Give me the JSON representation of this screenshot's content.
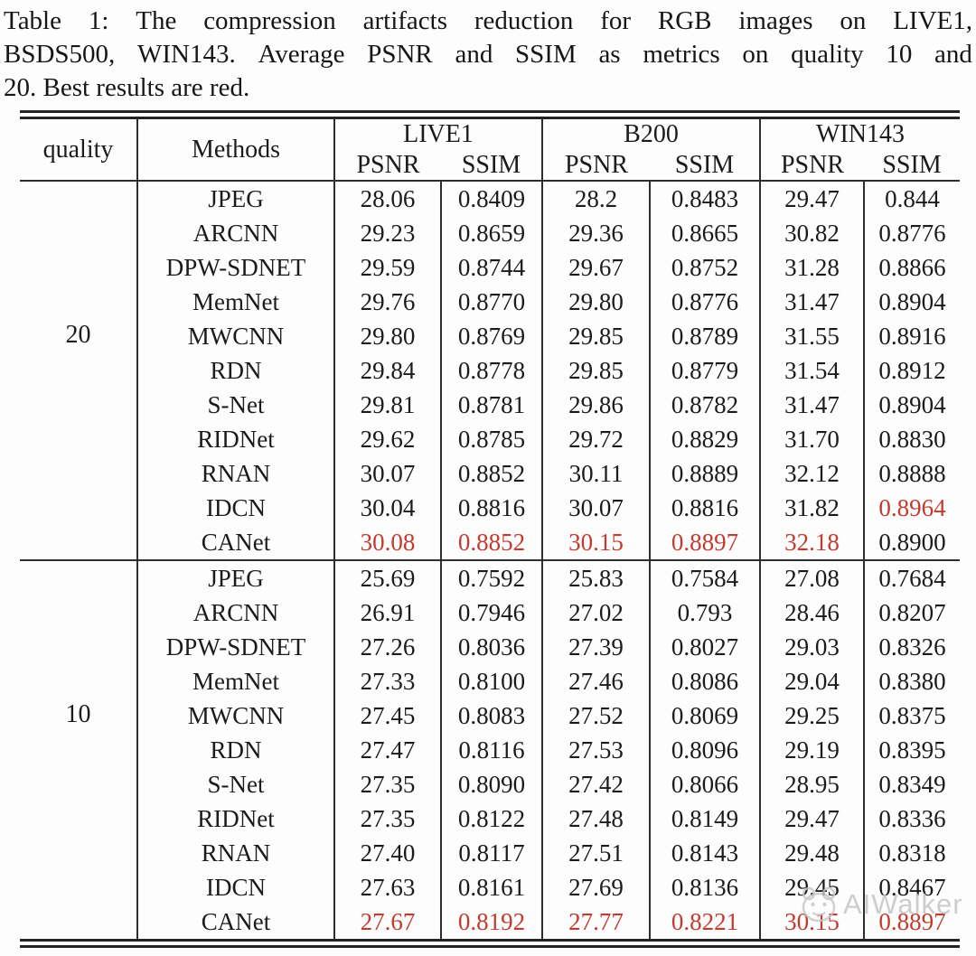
{
  "caption": {
    "line1": "Table 1: The compression artifacts reduction for RGB images on LIVE1,",
    "line2": "BSDS500, WIN143. Average PSNR and SSIM as metrics on quality 10 and",
    "line3": "20. Best results are red."
  },
  "colors": {
    "highlight_red": "#c23b2f",
    "text": "#1b1b1b",
    "rule": "#2e2e2e",
    "watermark_gray": "#c3c3c3"
  },
  "watermark": {
    "text": "AIWalker",
    "logo": "aiwalker-face-logo-icon"
  },
  "table": {
    "quality_header": "quality",
    "methods_header": "Methods",
    "groups": [
      {
        "label": "LIVE1"
      },
      {
        "label": "B200"
      },
      {
        "label": "WIN143"
      }
    ],
    "metric_headers": [
      "PSNR",
      "SSIM",
      "PSNR",
      "SSIM",
      "PSNR",
      "SSIM"
    ],
    "blocks": [
      {
        "quality": "20",
        "rows": [
          {
            "method": "JPEG",
            "values": [
              "28.06",
              "0.8409",
              "28.2",
              "0.8483",
              "29.47",
              "0.844"
            ],
            "red": []
          },
          {
            "method": "ARCNN",
            "values": [
              "29.23",
              "0.8659",
              "29.36",
              "0.8665",
              "30.82",
              "0.8776"
            ],
            "red": []
          },
          {
            "method": "DPW-SDNET",
            "values": [
              "29.59",
              "0.8744",
              "29.67",
              "0.8752",
              "31.28",
              "0.8866"
            ],
            "red": []
          },
          {
            "method": "MemNet",
            "values": [
              "29.76",
              "0.8770",
              "29.80",
              "0.8776",
              "31.47",
              "0.8904"
            ],
            "red": []
          },
          {
            "method": "MWCNN",
            "values": [
              "29.80",
              "0.8769",
              "29.85",
              "0.8789",
              "31.55",
              "0.8916"
            ],
            "red": []
          },
          {
            "method": "RDN",
            "values": [
              "29.84",
              "0.8778",
              "29.85",
              "0.8779",
              "31.54",
              "0.8912"
            ],
            "red": []
          },
          {
            "method": "S-Net",
            "values": [
              "29.81",
              "0.8781",
              "29.86",
              "0.8782",
              "31.47",
              "0.8904"
            ],
            "red": []
          },
          {
            "method": "RIDNet",
            "values": [
              "29.62",
              "0.8785",
              "29.72",
              "0.8829",
              "31.70",
              "0.8830"
            ],
            "red": []
          },
          {
            "method": "RNAN",
            "values": [
              "30.07",
              "0.8852",
              "30.11",
              "0.8889",
              "32.12",
              "0.8888"
            ],
            "red": []
          },
          {
            "method": "IDCN",
            "values": [
              "30.04",
              "0.8816",
              "30.07",
              "0.8816",
              "31.82",
              "0.8964"
            ],
            "red": [
              5
            ]
          },
          {
            "method": "CANet",
            "values": [
              "30.08",
              "0.8852",
              "30.15",
              "0.8897",
              "32.18",
              "0.8900"
            ],
            "red": [
              0,
              1,
              2,
              3,
              4
            ]
          }
        ]
      },
      {
        "quality": "10",
        "rows": [
          {
            "method": "JPEG",
            "values": [
              "25.69",
              "0.7592",
              "25.83",
              "0.7584",
              "27.08",
              "0.7684"
            ],
            "red": []
          },
          {
            "method": "ARCNN",
            "values": [
              "26.91",
              "0.7946",
              "27.02",
              "0.793",
              "28.46",
              "0.8207"
            ],
            "red": []
          },
          {
            "method": "DPW-SDNET",
            "values": [
              "27.26",
              "0.8036",
              "27.39",
              "0.8027",
              "29.03",
              "0.8326"
            ],
            "red": []
          },
          {
            "method": "MemNet",
            "values": [
              "27.33",
              "0.8100",
              "27.46",
              "0.8086",
              "29.04",
              "0.8380"
            ],
            "red": []
          },
          {
            "method": "MWCNN",
            "values": [
              "27.45",
              "0.8083",
              "27.52",
              "0.8069",
              "29.25",
              "0.8375"
            ],
            "red": []
          },
          {
            "method": "RDN",
            "values": [
              "27.47",
              "0.8116",
              "27.53",
              "0.8096",
              "29.19",
              "0.8395"
            ],
            "red": []
          },
          {
            "method": "S-Net",
            "values": [
              "27.35",
              "0.8090",
              "27.42",
              "0.8066",
              "28.95",
              "0.8349"
            ],
            "red": []
          },
          {
            "method": "RIDNet",
            "values": [
              "27.35",
              "0.8122",
              "27.48",
              "0.8149",
              "29.47",
              "0.8336"
            ],
            "red": []
          },
          {
            "method": "RNAN",
            "values": [
              "27.40",
              "0.8117",
              "27.51",
              "0.8143",
              "29.48",
              "0.8318"
            ],
            "red": []
          },
          {
            "method": "IDCN",
            "values": [
              "27.63",
              "0.8161",
              "27.69",
              "0.8136",
              "29.45",
              "0.8467"
            ],
            "red": []
          },
          {
            "method": "CANet",
            "values": [
              "27.67",
              "0.8192",
              "27.77",
              "0.8221",
              "30.15",
              "0.8897"
            ],
            "red": [
              0,
              1,
              2,
              3,
              4,
              5
            ]
          }
        ]
      }
    ]
  }
}
